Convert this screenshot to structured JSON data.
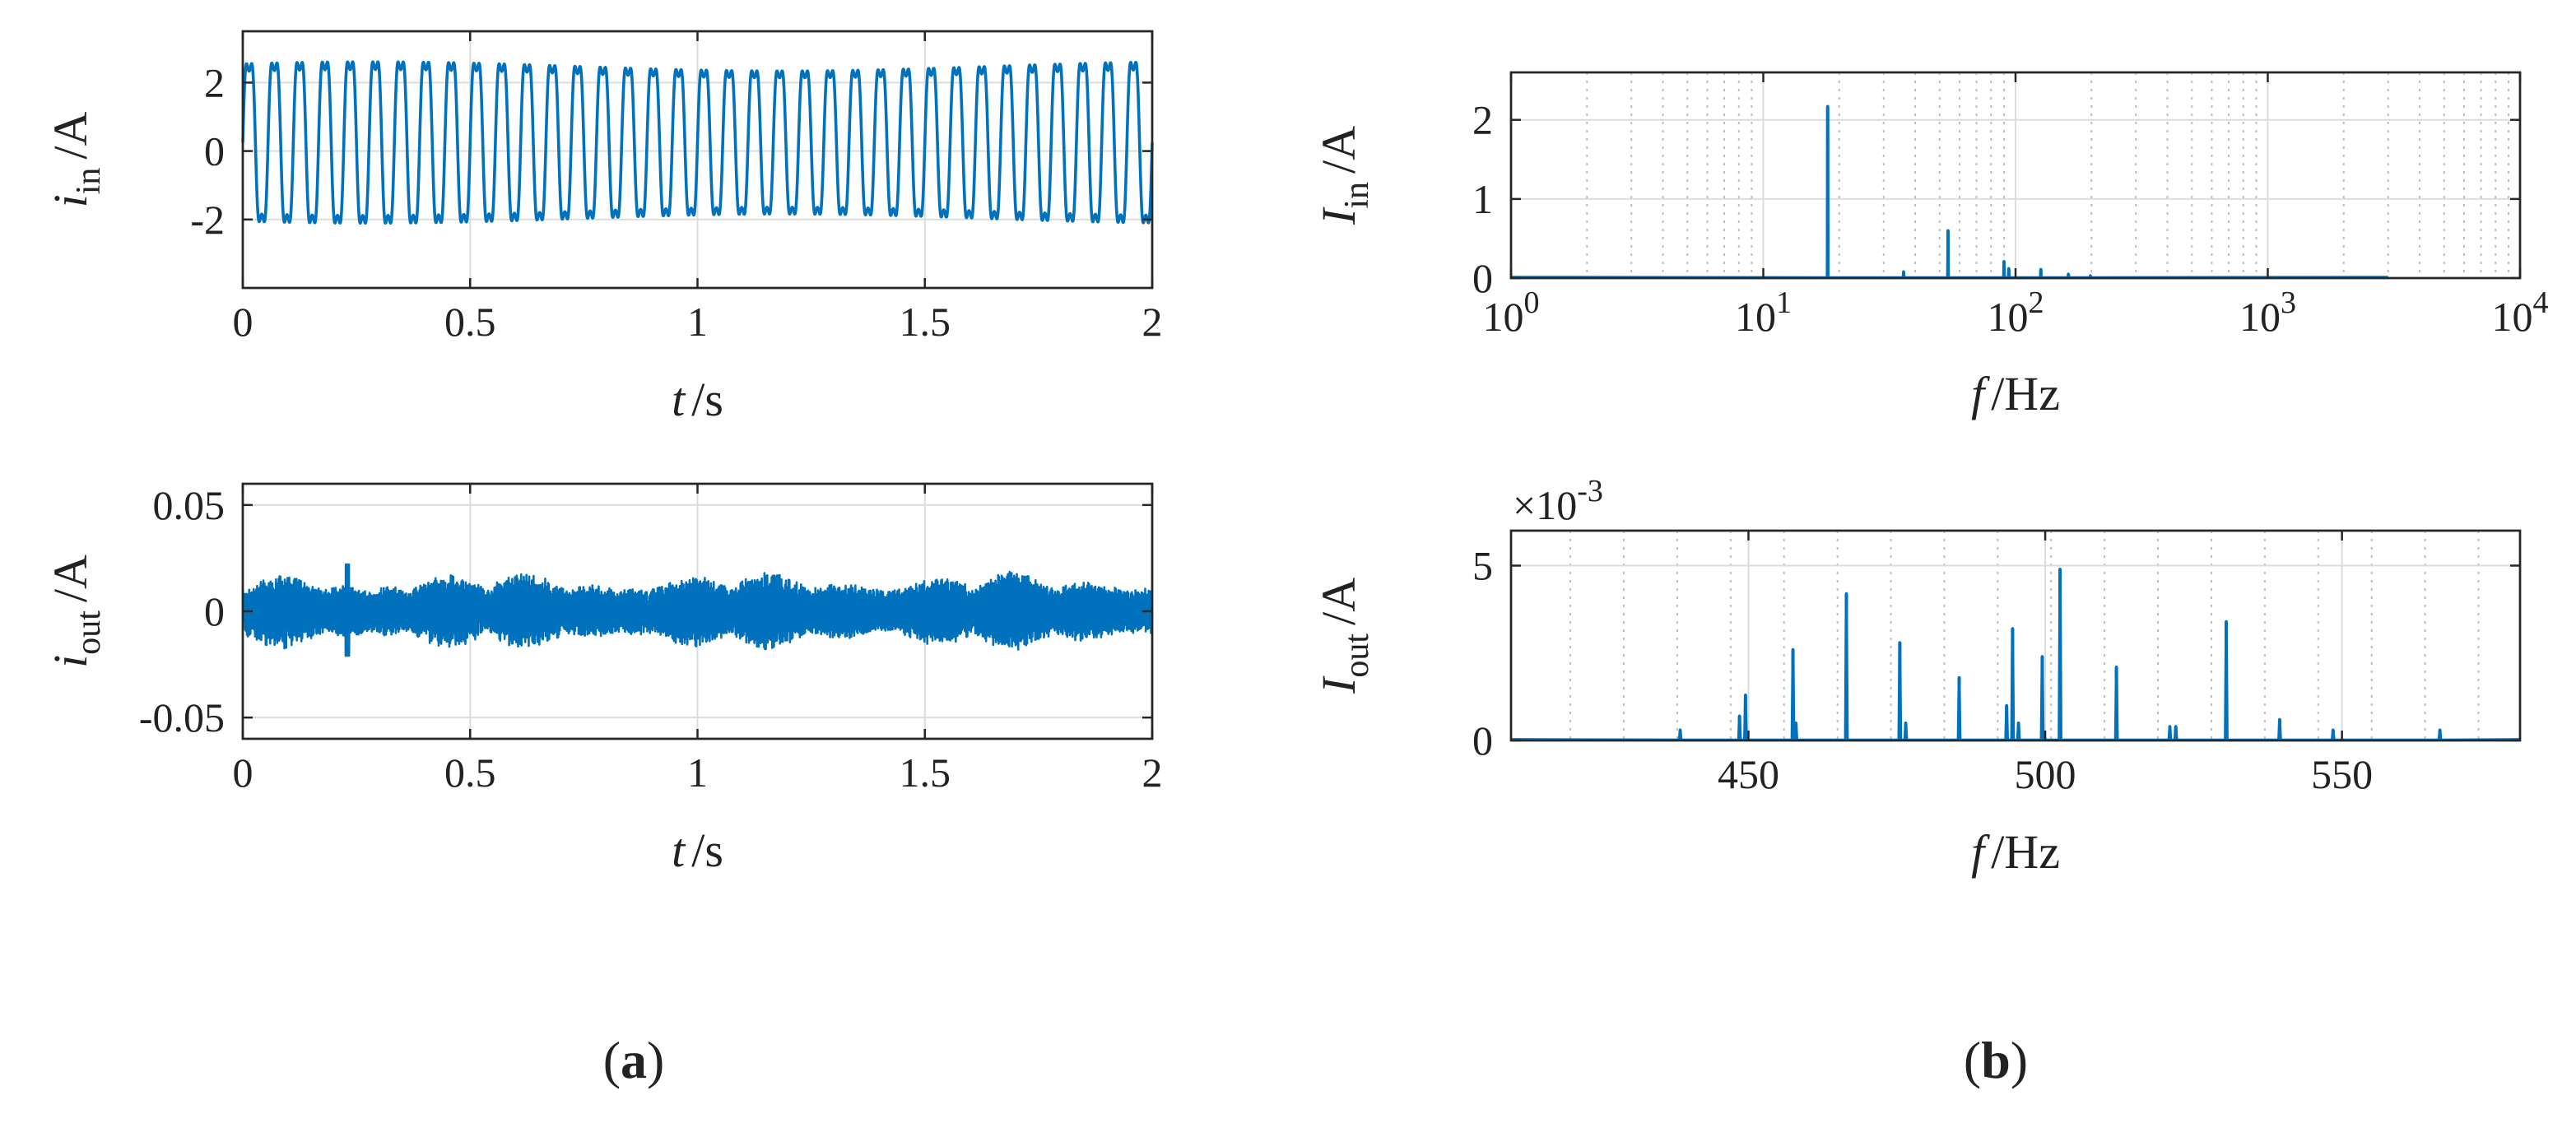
{
  "colors": {
    "series": "#0072BD",
    "axis": "#262626",
    "grid": "#dcdcdc"
  },
  "panels": {
    "a_label": "(a)",
    "b_label": "(b)"
  },
  "chart_data": [
    {
      "id": "iin_time",
      "type": "line",
      "ylabel_main": "i",
      "ylabel_sub": "in",
      "ylabel_unit": "/A",
      "xlabel_main": "t",
      "xlabel_unit": "/s",
      "xlim": [
        0,
        2
      ],
      "ylim": [
        -4,
        3.5
      ],
      "xticks": [
        0,
        0.5,
        1,
        1.5,
        2
      ],
      "xtick_labels": [
        "0",
        "0.5",
        "1",
        "1.5",
        "2"
      ],
      "yticks": [
        -2,
        0,
        2
      ],
      "ytick_labels": [
        "-2",
        "0",
        "2"
      ],
      "grid": true,
      "signal": {
        "kind": "sinusoid",
        "frequency_hz": 18,
        "amplitude_upper": 3.1,
        "amplitude_lower": -2.6,
        "harmonic_3rd": 0.6
      }
    },
    {
      "id": "iout_time",
      "type": "line",
      "ylabel_main": "i",
      "ylabel_sub": "out",
      "ylabel_unit": "/A",
      "xlabel_main": "t",
      "xlabel_unit": "/s",
      "xlim": [
        0,
        2
      ],
      "ylim": [
        -0.06,
        0.06
      ],
      "xticks": [
        0,
        0.5,
        1,
        1.5,
        2
      ],
      "xtick_labels": [
        "0",
        "0.5",
        "1",
        "1.5",
        "2"
      ],
      "yticks": [
        -0.05,
        0,
        0.05
      ],
      "ytick_labels": [
        "-0.05",
        "0",
        "0.05"
      ],
      "grid": true,
      "signal": {
        "kind": "noise",
        "typical_peak": 0.015,
        "max_peak": 0.022
      }
    },
    {
      "id": "Iin_spectrum",
      "type": "line",
      "x_scale": "log",
      "ylabel_main": "I",
      "ylabel_sub": "in",
      "ylabel_unit": "/A",
      "xlabel_main": "f",
      "xlabel_unit": "/Hz",
      "xlim": [
        1,
        10000
      ],
      "ylim": [
        0,
        2.6
      ],
      "xticks": [
        1,
        10,
        100,
        1000,
        10000
      ],
      "xtick_labels": [
        {
          "base": "10",
          "exp": "0"
        },
        {
          "base": "10",
          "exp": "1"
        },
        {
          "base": "10",
          "exp": "2"
        },
        {
          "base": "10",
          "exp": "3"
        },
        {
          "base": "10",
          "exp": "4"
        }
      ],
      "yticks": [
        0,
        1,
        2
      ],
      "ytick_labels": [
        "0",
        "1",
        "2"
      ],
      "grid": true,
      "spectrum_end_hz": 3000,
      "peaks": [
        {
          "f": 18,
          "amp": 2.17
        },
        {
          "f": 36,
          "amp": 0.08
        },
        {
          "f": 54,
          "amp": 0.6
        },
        {
          "f": 90,
          "amp": 0.21
        },
        {
          "f": 94,
          "amp": 0.12
        },
        {
          "f": 126,
          "amp": 0.11
        },
        {
          "f": 162,
          "amp": 0.05
        },
        {
          "f": 198,
          "amp": 0.03
        }
      ]
    },
    {
      "id": "Iout_spectrum",
      "type": "line",
      "ylabel_main": "I",
      "ylabel_sub": "out",
      "ylabel_unit": "/A",
      "xlabel_main": "f",
      "xlabel_unit": "/Hz",
      "xlim": [
        410,
        580
      ],
      "ylim": [
        0,
        6
      ],
      "xticks": [
        450,
        500,
        550
      ],
      "xtick_labels": [
        "450",
        "500",
        "550"
      ],
      "yticks": [
        0,
        5
      ],
      "ytick_labels": [
        "0",
        "5"
      ],
      "y_multiplier": {
        "base": "×10",
        "exp": "-3"
      },
      "grid": true,
      "minor_dotted_x": [
        420,
        429,
        438,
        447,
        456,
        465,
        474,
        483,
        492,
        501,
        510,
        519,
        528,
        537,
        546,
        555,
        564,
        573
      ],
      "peaks": [
        {
          "f": 438.5,
          "amp": 0.3
        },
        {
          "f": 448.5,
          "amp": 0.7
        },
        {
          "f": 449.5,
          "amp": 1.3
        },
        {
          "f": 457.5,
          "amp": 2.6
        },
        {
          "f": 458,
          "amp": 0.5
        },
        {
          "f": 466.5,
          "amp": 4.2
        },
        {
          "f": 475.5,
          "amp": 2.8
        },
        {
          "f": 476.5,
          "amp": 0.5
        },
        {
          "f": 485.5,
          "amp": 1.8
        },
        {
          "f": 493.5,
          "amp": 1.0
        },
        {
          "f": 494.5,
          "amp": 3.2
        },
        {
          "f": 495.5,
          "amp": 0.5
        },
        {
          "f": 499.5,
          "amp": 2.4
        },
        {
          "f": 502.5,
          "amp": 4.9
        },
        {
          "f": 512,
          "amp": 2.1
        },
        {
          "f": 521,
          "amp": 0.4
        },
        {
          "f": 522,
          "amp": 0.4
        },
        {
          "f": 530.5,
          "amp": 3.4
        },
        {
          "f": 539.5,
          "amp": 0.6
        },
        {
          "f": 548.5,
          "amp": 0.3
        },
        {
          "f": 566.5,
          "amp": 0.3
        }
      ]
    }
  ]
}
